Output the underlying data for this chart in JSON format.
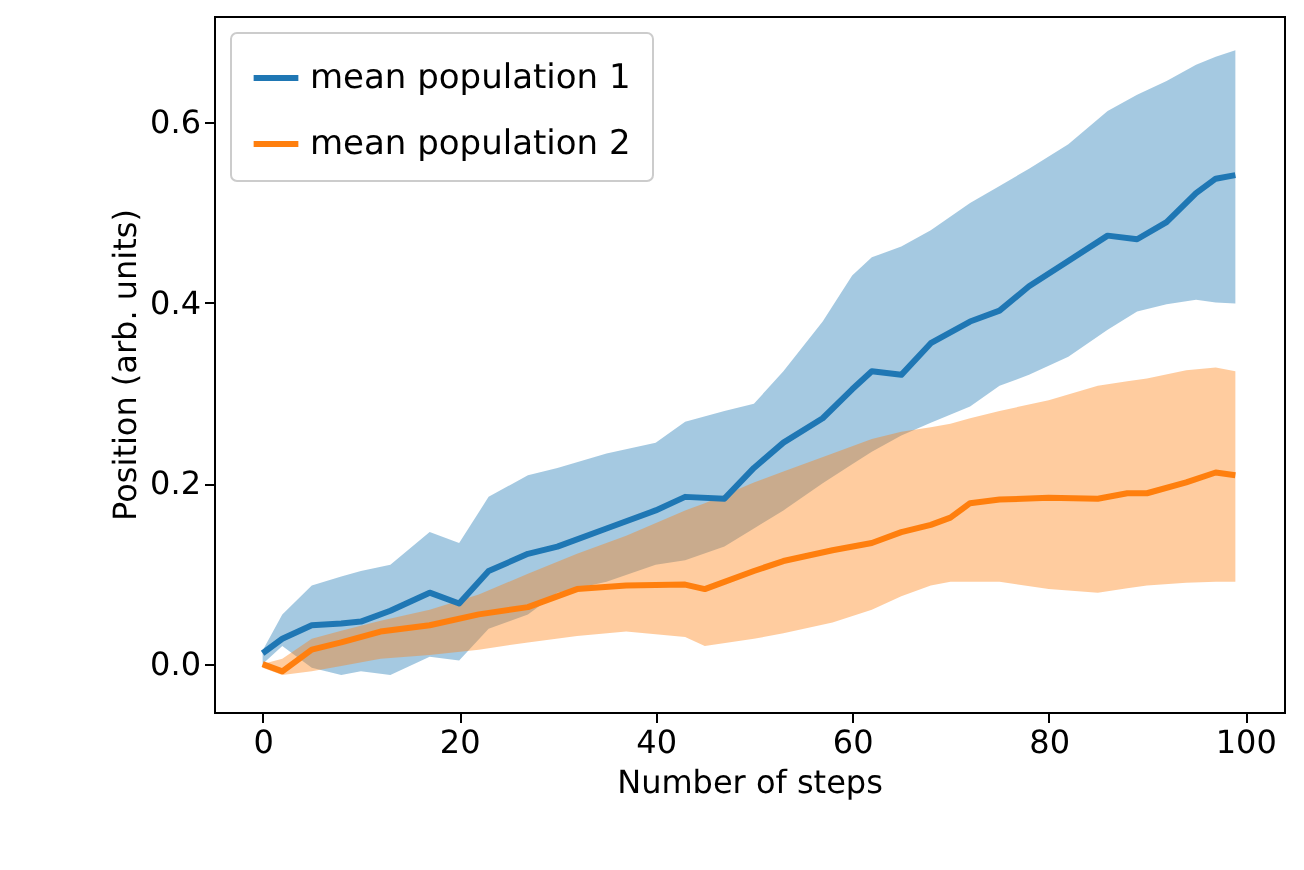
{
  "chart_data": {
    "type": "line",
    "xlabel": "Number of steps",
    "ylabel": "Position (arb. units)",
    "xlim": [
      -4.95,
      103.95
    ],
    "ylim": [
      -0.053,
      0.717
    ],
    "xticks": [
      0,
      20,
      40,
      60,
      80,
      100
    ],
    "yticks": [
      {
        "value": 0,
        "label": "0.0"
      },
      {
        "value": 0.2,
        "label": "0.2"
      },
      {
        "value": 0.4,
        "label": "0.4"
      },
      {
        "value": 0.6,
        "label": "0.6"
      }
    ],
    "grid": false,
    "legend": "top left",
    "series": [
      {
        "name": "mean population 1",
        "color": "#1f77b4",
        "x": [
          0,
          2,
          5,
          8,
          10,
          13,
          17,
          20,
          23,
          27,
          30,
          35,
          40,
          43,
          47,
          50,
          53,
          57,
          60,
          62,
          65,
          68,
          72,
          75,
          78,
          82,
          86,
          89,
          92,
          95,
          97,
          99
        ],
        "values": [
          0.012,
          0.028,
          0.043,
          0.045,
          0.047,
          0.059,
          0.079,
          0.067,
          0.103,
          0.122,
          0.13,
          0.15,
          0.17,
          0.185,
          0.183,
          0.217,
          0.245,
          0.272,
          0.304,
          0.324,
          0.32,
          0.355,
          0.379,
          0.391,
          0.418,
          0.446,
          0.474,
          0.47,
          0.489,
          0.521,
          0.537,
          0.541
        ],
        "upper": [
          0.015,
          0.055,
          0.087,
          0.097,
          0.103,
          0.11,
          0.146,
          0.134,
          0.185,
          0.209,
          0.217,
          0.233,
          0.245,
          0.268,
          0.28,
          0.288,
          0.324,
          0.379,
          0.43,
          0.45,
          0.462,
          0.48,
          0.51,
          0.529,
          0.548,
          0.575,
          0.612,
          0.63,
          0.645,
          0.663,
          0.672,
          0.679
        ],
        "lower": [
          0,
          0.02,
          -0.004,
          -0.012,
          -0.008,
          -0.012,
          0.008,
          0.004,
          0.039,
          0.055,
          0.079,
          0.091,
          0.11,
          0.115,
          0.13,
          0.15,
          0.17,
          0.2,
          0.221,
          0.235,
          0.253,
          0.267,
          0.285,
          0.308,
          0.32,
          0.34,
          0.37,
          0.39,
          0.398,
          0.403,
          0.4,
          0.399
        ]
      },
      {
        "name": "mean population 2",
        "color": "#ff7f0e",
        "x": [
          0,
          2,
          5,
          8,
          12,
          17,
          22,
          27,
          32,
          37,
          43,
          45,
          50,
          53,
          58,
          62,
          65,
          68,
          70,
          72,
          75,
          80,
          85,
          88,
          90,
          94,
          97,
          99
        ],
        "values": [
          0,
          -0.008,
          0.016,
          0.024,
          0.036,
          0.043,
          0.055,
          0.063,
          0.083,
          0.087,
          0.088,
          0.083,
          0.103,
          0.114,
          0.126,
          0.134,
          0.146,
          0.154,
          0.162,
          0.178,
          0.182,
          0.184,
          0.183,
          0.189,
          0.189,
          0.201,
          0.212,
          0.209
        ],
        "upper": [
          0,
          0.006,
          0.028,
          0.037,
          0.048,
          0.06,
          0.077,
          0.1,
          0.122,
          0.142,
          0.17,
          0.178,
          0.201,
          0.213,
          0.233,
          0.249,
          0.257,
          0.262,
          0.266,
          0.272,
          0.28,
          0.292,
          0.308,
          0.313,
          0.316,
          0.325,
          0.328,
          0.324
        ],
        "lower": [
          -0.004,
          -0.012,
          -0.008,
          -0.002,
          0.006,
          0.01,
          0.016,
          0.024,
          0.031,
          0.036,
          0.03,
          0.02,
          0.028,
          0.034,
          0.046,
          0.06,
          0.075,
          0.087,
          0.091,
          0.091,
          0.091,
          0.083,
          0.079,
          0.084,
          0.087,
          0.09,
          0.091,
          0.091
        ]
      }
    ]
  }
}
